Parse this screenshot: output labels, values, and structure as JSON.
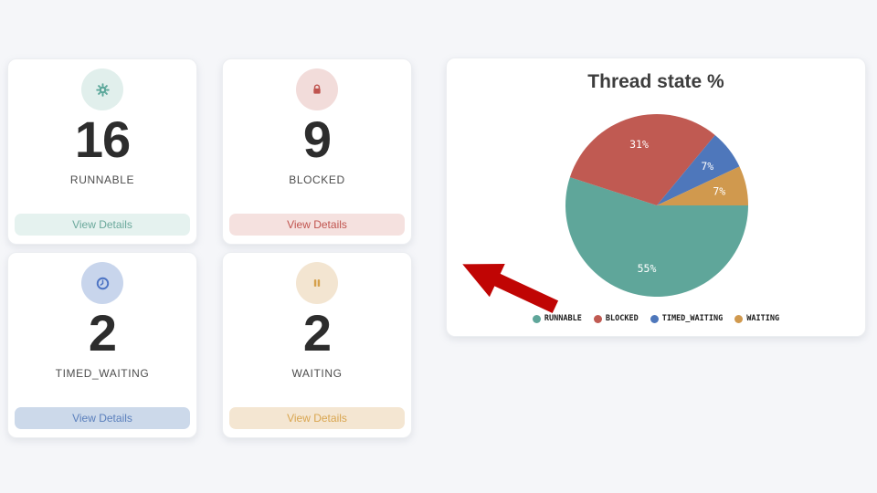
{
  "page": {
    "background": "#f5f6f9"
  },
  "cards": [
    {
      "id": "runnable",
      "icon": "gear-icon",
      "value": "16",
      "label": "RUNNABLE",
      "button_label": "View Details",
      "colors": {
        "accent": "#5ba79a",
        "icon_bg": "#e1efec",
        "button_bg": "#e5f2ef",
        "button_text": "#6aa89b"
      }
    },
    {
      "id": "blocked",
      "icon": "lock-icon",
      "value": "9",
      "label": "BLOCKED",
      "button_label": "View Details",
      "colors": {
        "accent": "#bf534e",
        "icon_bg": "#f2dcda",
        "button_bg": "#f5e1df",
        "button_text": "#c0534e"
      }
    },
    {
      "id": "timed_waiting",
      "icon": "clock-icon",
      "value": "2",
      "label": "TIMED_WAITING",
      "button_label": "View Details",
      "colors": {
        "accent": "#4d74c4",
        "icon_bg": "#c8d5ec",
        "button_bg": "#ccd9ea",
        "button_text": "#5a7fbc"
      }
    },
    {
      "id": "waiting",
      "icon": "pause-icon",
      "value": "2",
      "label": "WAITING",
      "button_label": "View Details",
      "colors": {
        "accent": "#d5a04b",
        "icon_bg": "#f3e5d1",
        "button_bg": "#f4e6d2",
        "button_text": "#d9a54f"
      }
    }
  ],
  "chart": {
    "title": "Thread state %"
  },
  "chart_data": {
    "type": "pie",
    "title": "Thread state %",
    "categories": [
      "RUNNABLE",
      "BLOCKED",
      "TIMED_WAITING",
      "WAITING"
    ],
    "values": [
      55,
      31,
      7,
      7
    ],
    "unit": "%",
    "slice_labels": [
      "55%",
      "31%",
      "7%",
      "7%"
    ],
    "colors": [
      "#5fa69a",
      "#c05a52",
      "#4e77bb",
      "#d0994e"
    ],
    "start_angle_deg": 0,
    "direction": "clockwise",
    "legend_position": "bottom",
    "label_radius_ratio": 0.7
  },
  "annotation": {
    "type": "block-arrow",
    "direction": "up-left",
    "color": "#c00504"
  }
}
